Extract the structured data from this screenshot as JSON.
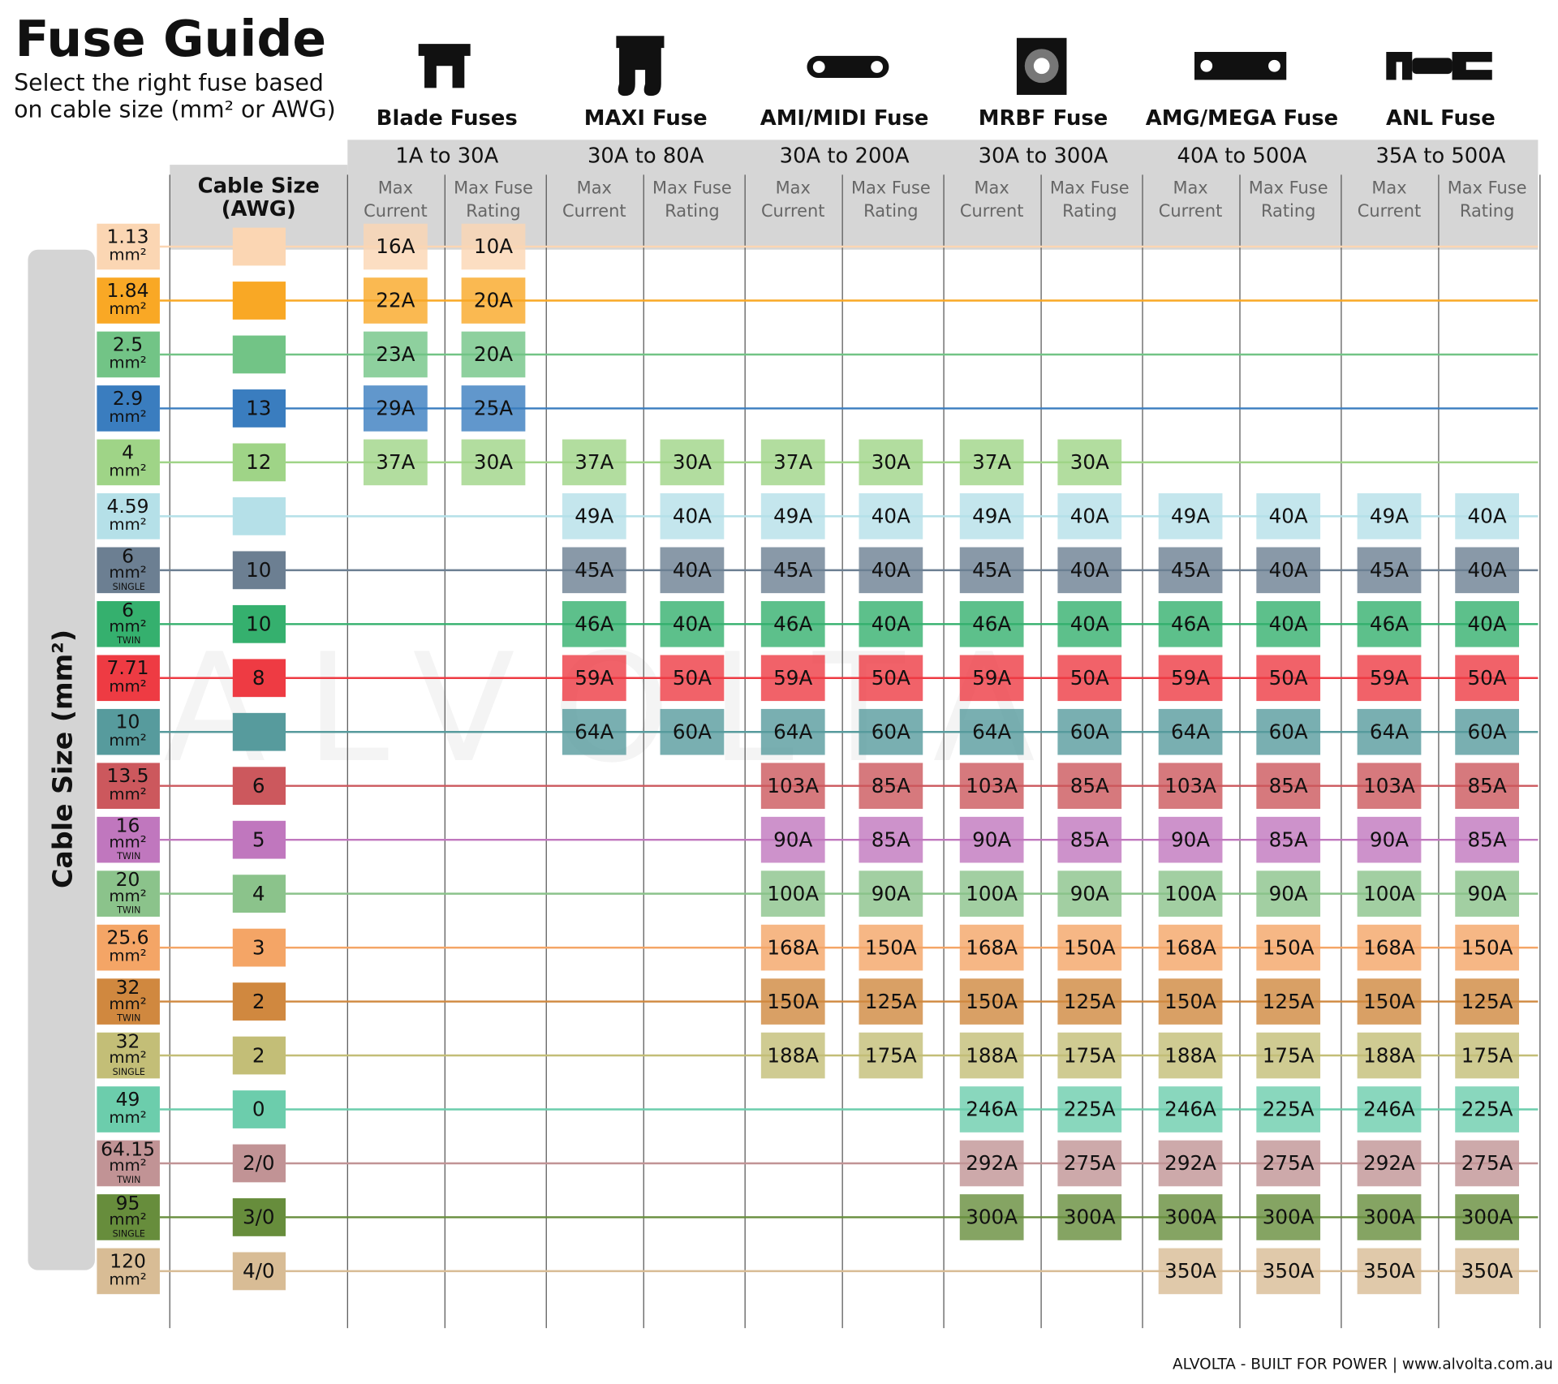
{
  "header": {
    "title": "Fuse Guide",
    "subtitle_lines": [
      "Select the right fuse based",
      "on cable size (mm² or AWG)"
    ]
  },
  "side_label": "Cable Size (mm²)",
  "awg_header": [
    "Cable Size",
    "(AWG)"
  ],
  "column_headers": [
    [
      "Max",
      "Current"
    ],
    [
      "Max Fuse",
      "Rating"
    ]
  ],
  "watermark": "ALVOLTA",
  "fuse_types": [
    {
      "name": "Blade Fuses",
      "range": "1A to 30A"
    },
    {
      "name": "MAXI Fuse",
      "range": "30A to 80A"
    },
    {
      "name": "AMI/MIDI Fuse",
      "range": "30A to 200A"
    },
    {
      "name": "MRBF Fuse",
      "range": "30A to 300A"
    },
    {
      "name": "AMG/MEGA Fuse",
      "range": "40A to 500A"
    },
    {
      "name": "ANL Fuse",
      "range": "35A to 500A"
    }
  ],
  "rows": [
    {
      "size": "1.13",
      "unit": "mm²",
      "awg": null,
      "color": "#fbd6b3",
      "values": [
        "16A",
        "10A",
        null,
        null,
        null,
        null,
        null,
        null,
        null,
        null,
        null,
        null
      ]
    },
    {
      "size": "1.84",
      "unit": "mm²",
      "awg": null,
      "color": "#f9a825",
      "values": [
        "22A",
        "20A",
        null,
        null,
        null,
        null,
        null,
        null,
        null,
        null,
        null,
        null
      ]
    },
    {
      "size": "2.5",
      "unit": "mm²",
      "awg": null,
      "color": "#72c486",
      "values": [
        "23A",
        "20A",
        null,
        null,
        null,
        null,
        null,
        null,
        null,
        null,
        null,
        null
      ]
    },
    {
      "size": "2.9",
      "unit": "mm²",
      "awg": "13",
      "color": "#3a7dbf",
      "values": [
        "29A",
        "25A",
        null,
        null,
        null,
        null,
        null,
        null,
        null,
        null,
        null,
        null
      ]
    },
    {
      "size": "4",
      "unit": "mm²",
      "awg": "12",
      "color": "#9fd487",
      "values": [
        "37A",
        "30A",
        "37A",
        "30A",
        "37A",
        "30A",
        "37A",
        "30A",
        null,
        null,
        null,
        null
      ]
    },
    {
      "size": "4.59",
      "unit": "mm²",
      "awg": null,
      "color": "#b5e0e8",
      "values": [
        null,
        null,
        "49A",
        "40A",
        "49A",
        "40A",
        "49A",
        "40A",
        "49A",
        "40A",
        "49A",
        "40A"
      ]
    },
    {
      "size": "6",
      "unit": "mm²",
      "note": "SINGLE",
      "awg": "10",
      "color": "#6c7f92",
      "values": [
        null,
        null,
        "45A",
        "40A",
        "45A",
        "40A",
        "45A",
        "40A",
        "45A",
        "40A",
        "45A",
        "40A"
      ]
    },
    {
      "size": "6",
      "unit": "mm²",
      "note": "TWIN",
      "awg": "10",
      "color": "#35b06e",
      "values": [
        null,
        null,
        "46A",
        "40A",
        "46A",
        "40A",
        "46A",
        "40A",
        "46A",
        "40A",
        "46A",
        "40A"
      ]
    },
    {
      "size": "7.71",
      "unit": "mm²",
      "awg": "8",
      "color": "#ee3b43",
      "values": [
        null,
        null,
        "59A",
        "50A",
        "59A",
        "50A",
        "59A",
        "50A",
        "59A",
        "50A",
        "59A",
        "50A"
      ]
    },
    {
      "size": "10",
      "unit": "mm²",
      "awg": null,
      "color": "#579b9d",
      "values": [
        null,
        null,
        "64A",
        "60A",
        "64A",
        "60A",
        "64A",
        "60A",
        "64A",
        "60A",
        "64A",
        "60A"
      ]
    },
    {
      "size": "13.5",
      "unit": "mm²",
      "awg": "6",
      "color": "#cc585d",
      "values": [
        null,
        null,
        null,
        null,
        "103A",
        "85A",
        "103A",
        "85A",
        "103A",
        "85A",
        "103A",
        "85A"
      ]
    },
    {
      "size": "16",
      "unit": "mm²",
      "note": "TWIN",
      "awg": "5",
      "color": "#c077be",
      "values": [
        null,
        null,
        null,
        null,
        "90A",
        "85A",
        "90A",
        "85A",
        "90A",
        "85A",
        "90A",
        "85A"
      ]
    },
    {
      "size": "20",
      "unit": "mm²",
      "note": "TWIN",
      "awg": "4",
      "color": "#8bc38b",
      "values": [
        null,
        null,
        null,
        null,
        "100A",
        "90A",
        "100A",
        "90A",
        "100A",
        "90A",
        "100A",
        "90A"
      ]
    },
    {
      "size": "25.6",
      "unit": "mm²",
      "awg": "3",
      "color": "#f4a566",
      "values": [
        null,
        null,
        null,
        null,
        "168A",
        "150A",
        "168A",
        "150A",
        "168A",
        "150A",
        "168A",
        "150A"
      ]
    },
    {
      "size": "32",
      "unit": "mm²",
      "note": "TWIN",
      "awg": "2",
      "color": "#d0883f",
      "values": [
        null,
        null,
        null,
        null,
        "150A",
        "125A",
        "150A",
        "125A",
        "150A",
        "125A",
        "150A",
        "125A"
      ]
    },
    {
      "size": "32",
      "unit": "mm²",
      "note": "SINGLE",
      "awg": "2",
      "color": "#c3be77",
      "values": [
        null,
        null,
        null,
        null,
        "188A",
        "175A",
        "188A",
        "175A",
        "188A",
        "175A",
        "188A",
        "175A"
      ]
    },
    {
      "size": "49",
      "unit": "mm²",
      "awg": "0",
      "color": "#6ccdac",
      "values": [
        null,
        null,
        null,
        null,
        null,
        null,
        "246A",
        "225A",
        "246A",
        "225A",
        "246A",
        "225A"
      ]
    },
    {
      "size": "64.15",
      "unit": "mm²",
      "note": "TWIN",
      "awg": "2/0",
      "color": "#c19395",
      "values": [
        null,
        null,
        null,
        null,
        null,
        null,
        "292A",
        "275A",
        "292A",
        "275A",
        "292A",
        "275A"
      ]
    },
    {
      "size": "95",
      "unit": "mm²",
      "note": "SINGLE",
      "awg": "3/0",
      "color": "#678d3c",
      "values": [
        null,
        null,
        null,
        null,
        null,
        null,
        "300A",
        "300A",
        "300A",
        "300A",
        "300A",
        "300A"
      ]
    },
    {
      "size": "120",
      "unit": "mm²",
      "awg": "4/0",
      "color": "#d8bc95",
      "values": [
        null,
        null,
        null,
        null,
        null,
        null,
        null,
        null,
        "350A",
        "350A",
        "350A",
        "350A"
      ]
    }
  ],
  "footer": "ALVOLTA - BUILT FOR POWER | www.alvolta.com.au"
}
